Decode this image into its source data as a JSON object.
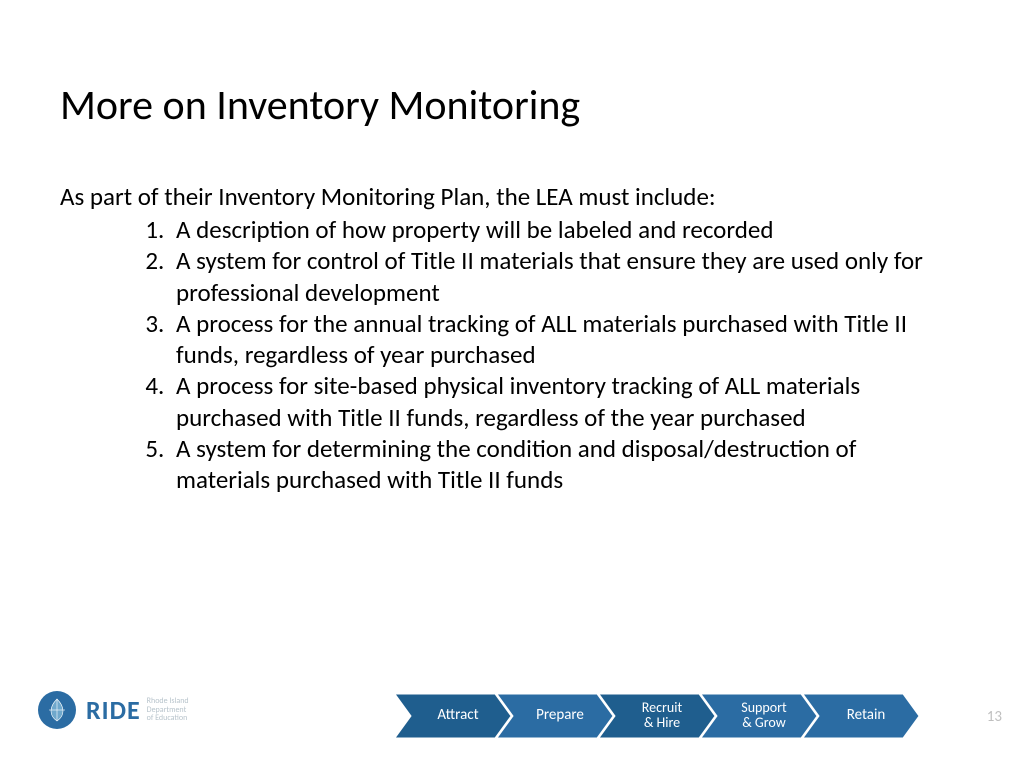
{
  "title": "More on Inventory Monitoring",
  "intro": "As part of their Inventory Monitoring Plan, the LEA must include:",
  "items": [
    "A description of how property will be labeled and recorded",
    "A system for control of Title II materials that ensure they are used only for professional development",
    "A process for the annual tracking of ALL materials purchased with Title II funds, regardless of year purchased",
    "A process for site-based physical inventory tracking of ALL materials purchased with Title II funds, regardless of the year purchased",
    "A system for determining the condition and disposal/destruction of materials purchased with Title II funds"
  ],
  "logo": {
    "main": "RIDE",
    "sub1": "Rhode Island",
    "sub2": "Department",
    "sub3": "of Education",
    "seal_color": "#2b6ca3"
  },
  "chevrons": [
    {
      "label": "Attract",
      "two_line": false,
      "fill": "#1f5e8e"
    },
    {
      "label": "Prepare",
      "two_line": false,
      "fill": "#2b6ca3"
    },
    {
      "label": "Recruit\n& Hire",
      "two_line": true,
      "fill": "#1f5e8e"
    },
    {
      "label": "Support\n& Grow",
      "two_line": true,
      "fill": "#2b6ca3"
    },
    {
      "label": "Retain",
      "two_line": false,
      "fill": "#2b6ca3"
    }
  ],
  "page_number": "13",
  "colors": {
    "text": "#000000",
    "bg": "#ffffff",
    "chev_stroke": "#ffffff",
    "pagenum": "#bfbfbf"
  }
}
